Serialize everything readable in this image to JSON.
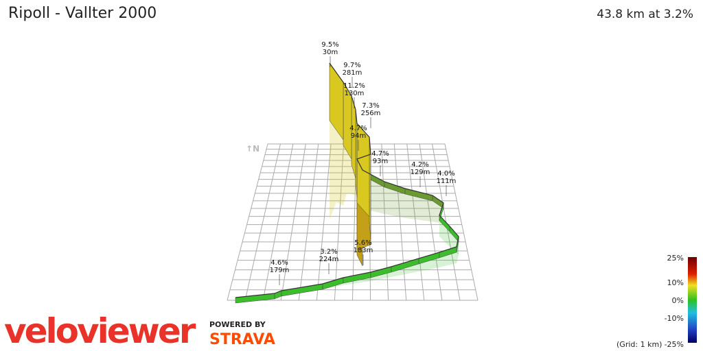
{
  "header": {
    "title": "Ripoll - Vallter 2000",
    "summary": "43.8 km at 3.2%"
  },
  "compass": "↑N",
  "annotations": [
    {
      "grade": "9.5%",
      "length": "30m"
    },
    {
      "grade": "9.7%",
      "length": "281m"
    },
    {
      "grade": "11.2%",
      "length": "130m"
    },
    {
      "grade": "7.3%",
      "length": "256m"
    },
    {
      "grade": "4.7%",
      "length": "94m"
    },
    {
      "grade": "4.7%",
      "length": "93m"
    },
    {
      "grade": "4.2%",
      "length": "129m"
    },
    {
      "grade": "4.0%",
      "length": "111m"
    },
    {
      "grade": "5.6%",
      "length": "183m"
    },
    {
      "grade": "3.2%",
      "length": "224m"
    },
    {
      "grade": "4.6%",
      "length": "179m"
    }
  ],
  "legend": {
    "labels": [
      "25%",
      "10%",
      "0%",
      "-10%",
      "-25%"
    ],
    "grid_note": "(Grid: 1 km)"
  },
  "branding": {
    "logo": "veloviewer",
    "powered": "POWERED BY",
    "strava": "STRAVA"
  }
}
